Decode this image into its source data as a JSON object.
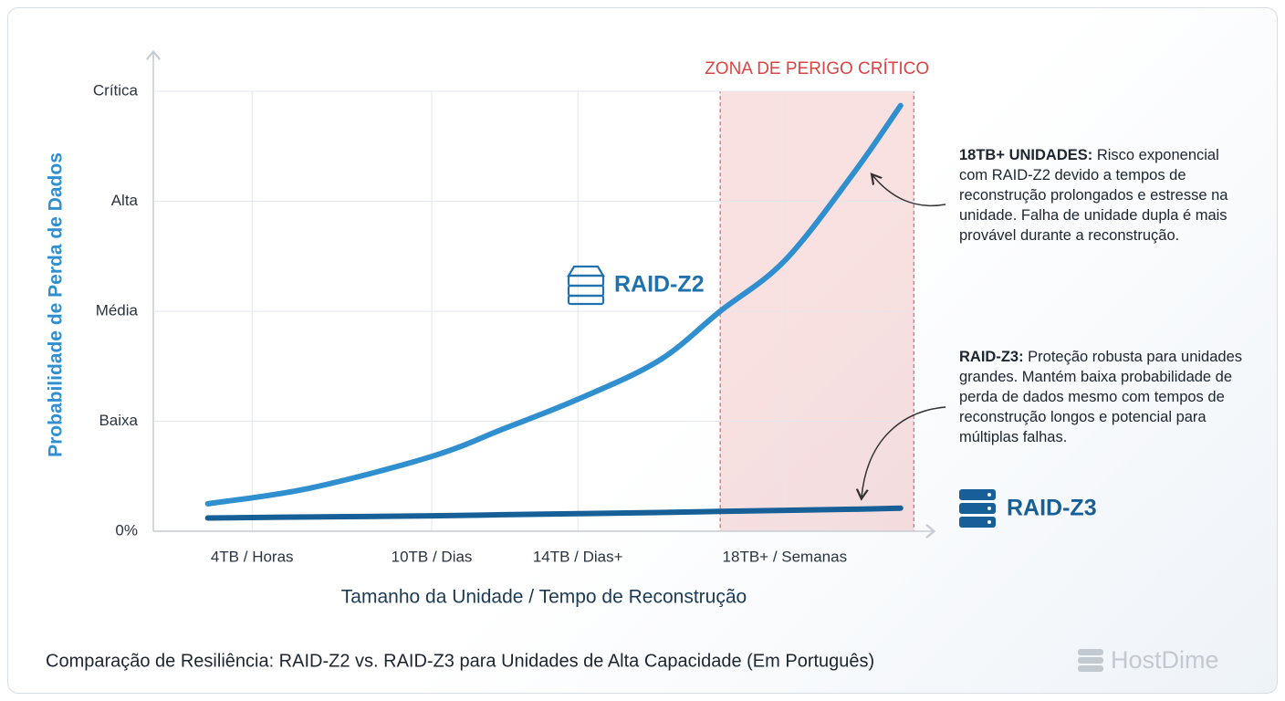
{
  "chart_data": {
    "type": "line",
    "title": "Comparação de Resiliência: RAID-Z2 vs. RAID-Z3 para Unidades de Alta Capacidade (Em Português)",
    "x_label": "Tamanho da Unidade / Tempo de Reconstrução",
    "y_label": "Probabilidade de Perda de Dados",
    "xlim": [
      0,
      100
    ],
    "xticks": [
      {
        "value": 12.7,
        "label": "4TB / Horas"
      },
      {
        "value": 35.8,
        "label": "10TB / Dias"
      },
      {
        "value": 54.6,
        "label": "14TB / Dias+"
      },
      {
        "value": 81.2,
        "label": "18TB+ / Semanas"
      }
    ],
    "ylim": [
      0,
      4
    ],
    "yticks": [
      {
        "value": 0,
        "label": "0%"
      },
      {
        "value": 1,
        "label": "Baixa"
      },
      {
        "value": 2,
        "label": "Média"
      },
      {
        "value": 3,
        "label": "Alta"
      },
      {
        "value": 4,
        "label": "Crítica"
      }
    ],
    "grid": true,
    "x": [
      7,
      20,
      35.8,
      45,
      54.6,
      65,
      72.9,
      81.2,
      90,
      96.1
    ],
    "series": [
      {
        "name": "RAID-Z2",
        "color": "#2f8fcf",
        "values": [
          0.25,
          0.39,
          0.68,
          0.93,
          1.2,
          1.55,
          2.0,
          2.46,
          3.25,
          3.87
        ]
      },
      {
        "name": "RAID-Z3",
        "color": "#175f97",
        "values": [
          0.12,
          0.13,
          0.14,
          0.15,
          0.16,
          0.17,
          0.18,
          0.19,
          0.2,
          0.21
        ]
      }
    ],
    "danger_zone": {
      "label": "ZONA DE PERIGO CRÍTICO",
      "xrange": [
        72.9,
        97.8
      ],
      "color": "#d94545"
    },
    "annotations": [
      {
        "heading": "18TB+ UNIDADES:",
        "text": "Risco exponencial com RAID-Z2 devido a tempos de reconstrução prolongados e estresse na unidade. Falha de unidade dupla é mais provável durante a reconstrução."
      },
      {
        "heading": "RAID-Z3:",
        "text": "Proteção robusta para unidades grandes. Mantém baixa probabilidade de perda de dados mesmo com tempos de reconstrução longos e potencial para múltiplas falhas."
      }
    ],
    "brand": "HostDime"
  }
}
